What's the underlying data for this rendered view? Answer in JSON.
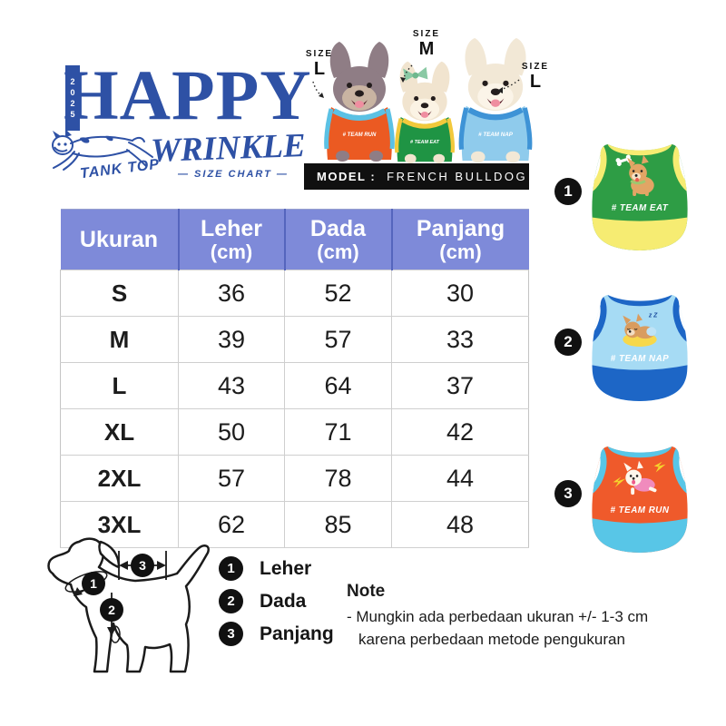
{
  "logo": {
    "year_digits": [
      "2",
      "0",
      "2",
      "5"
    ],
    "brand_line1": "HAPPY",
    "brand_line2": "WRINKLE",
    "product_type": "TANK TOP",
    "chart_label": "—  SIZE CHART  —",
    "accent_color": "#2e51a5"
  },
  "hero": {
    "size_callouts": [
      {
        "prefix": "SIZE",
        "value": "L"
      },
      {
        "prefix": "SIZE",
        "value": "M"
      },
      {
        "prefix": "SIZE",
        "value": "L"
      }
    ],
    "model_label": "MODEL :",
    "model_value": "FRENCH BULLDOG",
    "shirt_texts": [
      "# TEAM RUN",
      "# TEAM EAT",
      "# TEAM NAP"
    ]
  },
  "size_table": {
    "header_bg": "#7e8ad9",
    "headers": [
      {
        "label": "Ukuran",
        "unit": ""
      },
      {
        "label": "Leher",
        "unit": "(cm)"
      },
      {
        "label": "Dada",
        "unit": "(cm)"
      },
      {
        "label": "Panjang",
        "unit": "(cm)"
      }
    ],
    "rows": [
      {
        "size": "S",
        "leher": "36",
        "dada": "52",
        "panjang": "30"
      },
      {
        "size": "M",
        "leher": "39",
        "dada": "57",
        "panjang": "33"
      },
      {
        "size": "L",
        "leher": "43",
        "dada": "64",
        "panjang": "37"
      },
      {
        "size": "XL",
        "leher": "50",
        "dada": "71",
        "panjang": "42"
      },
      {
        "size": "2XL",
        "leher": "57",
        "dada": "78",
        "panjang": "44"
      },
      {
        "size": "3XL",
        "leher": "62",
        "dada": "85",
        "panjang": "48"
      }
    ]
  },
  "products": [
    {
      "number": "1",
      "caption": "# TEAM EAT",
      "body_color": "#2e9d45",
      "trim_color": "#f6ec72"
    },
    {
      "number": "2",
      "caption": "# TEAM NAP",
      "body_color": "#a6dbf4",
      "trim_color": "#1d66c6",
      "extra": "z Z"
    },
    {
      "number": "3",
      "caption": "# TEAM RUN",
      "body_color": "#ef5a2b",
      "trim_color": "#58c6e7"
    }
  ],
  "diagram_markers": [
    "1",
    "2",
    "3"
  ],
  "measurement_legend": [
    {
      "number": "1",
      "label": "Leher"
    },
    {
      "number": "2",
      "label": "Dada"
    },
    {
      "number": "3",
      "label": "Panjang"
    }
  ],
  "note": {
    "title": "Note",
    "line1": "- Mungkin ada perbedaan ukuran +/- 1-3 cm",
    "line2": "karena perbedaan metode pengukuran"
  }
}
